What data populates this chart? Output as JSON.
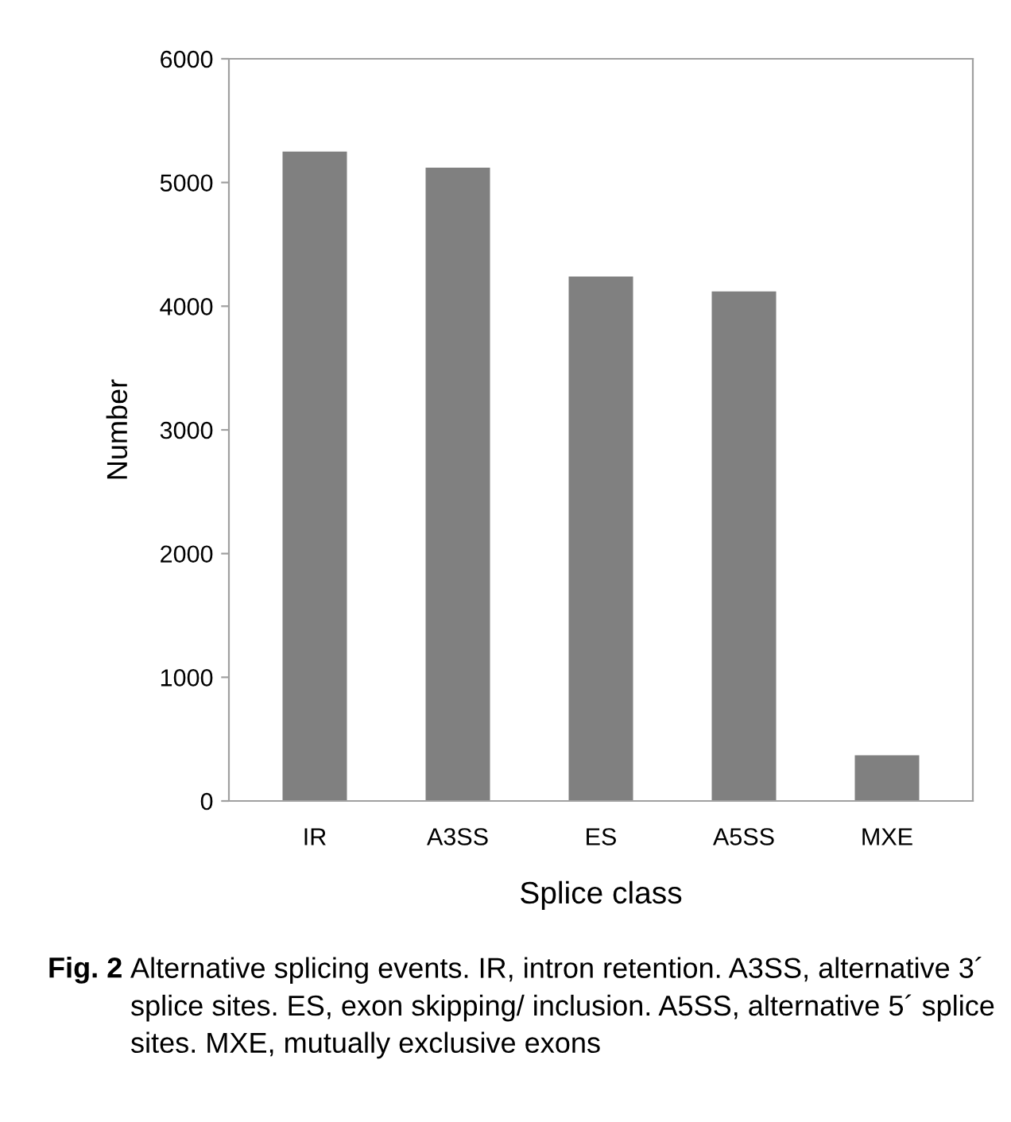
{
  "chart_data": {
    "type": "bar",
    "xlabel": "Splice class",
    "ylabel": "Number",
    "categories": [
      "IR",
      "A3SS",
      "ES",
      "A5SS",
      "MXE"
    ],
    "values": [
      5250,
      5120,
      4240,
      4120,
      370
    ],
    "color": "#808080",
    "ylim": [
      0,
      6000
    ],
    "yticks": [
      0,
      1000,
      2000,
      3000,
      4000,
      5000,
      6000
    ],
    "grid": false,
    "annotations": [
      "Fig. 2",
      "Alternative splicing events. IR, intron retention. A3SS, alternative 3´ splice sites. ES, exon skipping/ inclusion. A5SS, alternative 5´ splice sites. MXE, mutually exclusive exons"
    ]
  }
}
